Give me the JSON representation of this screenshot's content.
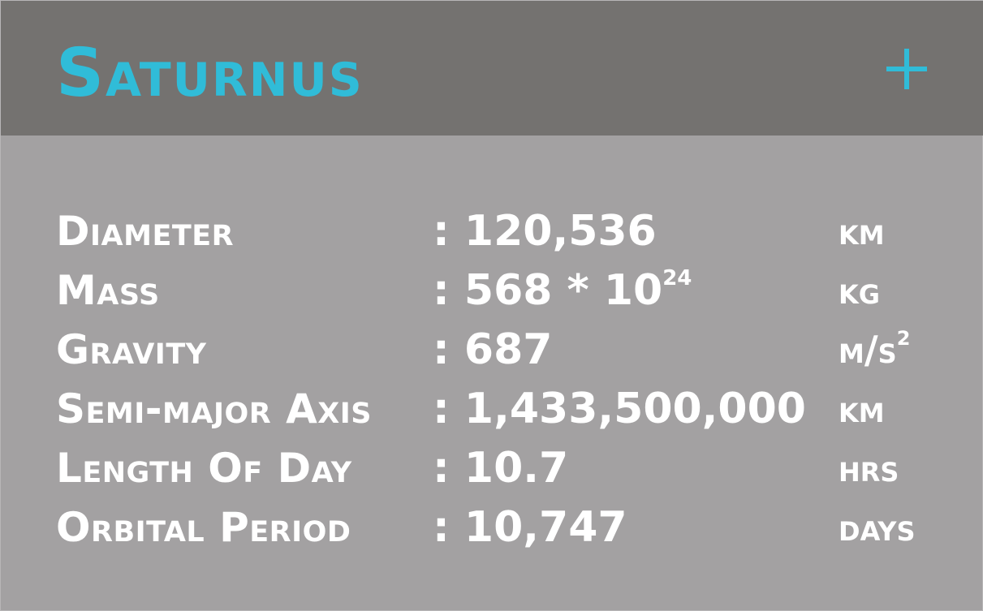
{
  "card": {
    "title": "Saturnus",
    "expand_icon": "plus-icon",
    "colors": {
      "header_bg": "#747270",
      "body_bg": "#a3a1a2",
      "accent": "#30bcd8",
      "text": "#ffffff"
    }
  },
  "stats": [
    {
      "label": "Diameter",
      "value": ": 120,536",
      "unit": "km"
    },
    {
      "label": "Mass",
      "value": ": 568 * 10",
      "value_sup": "24",
      "unit": "kg"
    },
    {
      "label": "Gravity",
      "value": ": 687",
      "unit": "m/s",
      "unit_sup": "2"
    },
    {
      "label": "Semi-major Axis",
      "value": ": 1,433,500,000",
      "unit": "km"
    },
    {
      "label": "Length Of Day",
      "value": ": 10.7",
      "unit": "hrs"
    },
    {
      "label": "Orbital Period",
      "value": ": 10,747",
      "unit": "days"
    }
  ]
}
